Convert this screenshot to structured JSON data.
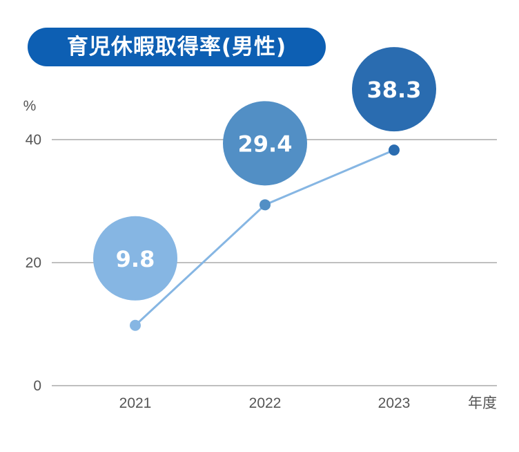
{
  "title": "育児休暇取得率(男性)",
  "chart_data": {
    "type": "line",
    "title": "育児休暇取得率(男性)",
    "ylabel": "%",
    "xlabel": "年度",
    "categories": [
      "2021",
      "2022",
      "2023"
    ],
    "values": [
      9.8,
      29.4,
      38.3
    ],
    "data_labels": [
      "9.8",
      "29.4",
      "38.3"
    ],
    "ylim": [
      0,
      40
    ],
    "yticks": [
      "0",
      "20",
      "40"
    ],
    "grid": true,
    "colors": {
      "line": "#86b6e3",
      "gridline": "#999999",
      "title_bg": "#0d5fb3",
      "bubbles": [
        "#86b6e3",
        "#528fc5",
        "#2a6cb0"
      ],
      "points": [
        "#86b6e3",
        "#528fc5",
        "#2a6cb0"
      ]
    }
  }
}
